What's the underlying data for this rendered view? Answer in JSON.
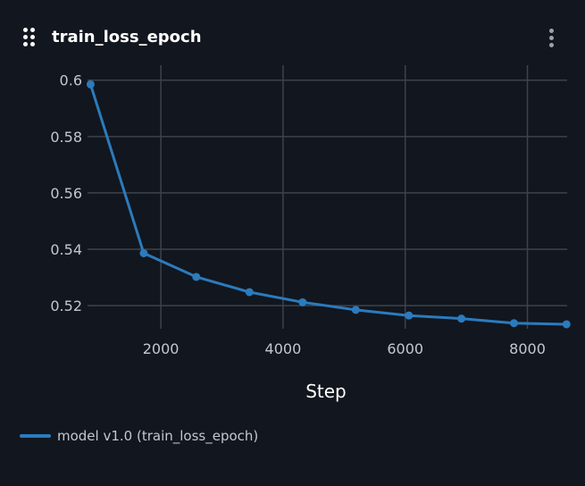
{
  "panel": {
    "title": "train_loss_epoch",
    "drag_icon": "drag-dots-icon",
    "menu_icon": "kebab-menu-icon"
  },
  "colors": {
    "background": "#12161e",
    "grid": "#3c434c",
    "series": "#2b7bbd",
    "tick_text": "#c3c8cf",
    "title_text": "#ffffff"
  },
  "chart_data": {
    "type": "line",
    "title": "train_loss_epoch",
    "xlabel": "Step",
    "ylabel": "",
    "xlim": [
      800,
      8650
    ],
    "ylim": [
      0.5118,
      0.6053
    ],
    "x_ticks": [
      2000,
      4000,
      6000,
      8000
    ],
    "x_tick_labels": [
      "2000",
      "4000",
      "6000",
      "8000"
    ],
    "y_ticks": [
      0.52,
      0.54,
      0.56,
      0.58,
      0.6
    ],
    "y_tick_labels": [
      "0.52",
      "0.54",
      "0.56",
      "0.58",
      "0.6"
    ],
    "grid": true,
    "legend_position": "bottom-left",
    "series": [
      {
        "name": "model v1.0 (train_loss_epoch)",
        "x": [
          850,
          1720,
          2580,
          3450,
          4320,
          5190,
          6060,
          6920,
          7780,
          8640
        ],
        "y": [
          0.5985,
          0.5386,
          0.5302,
          0.5248,
          0.5212,
          0.5185,
          0.5165,
          0.5154,
          0.5138,
          0.5134
        ]
      }
    ]
  }
}
